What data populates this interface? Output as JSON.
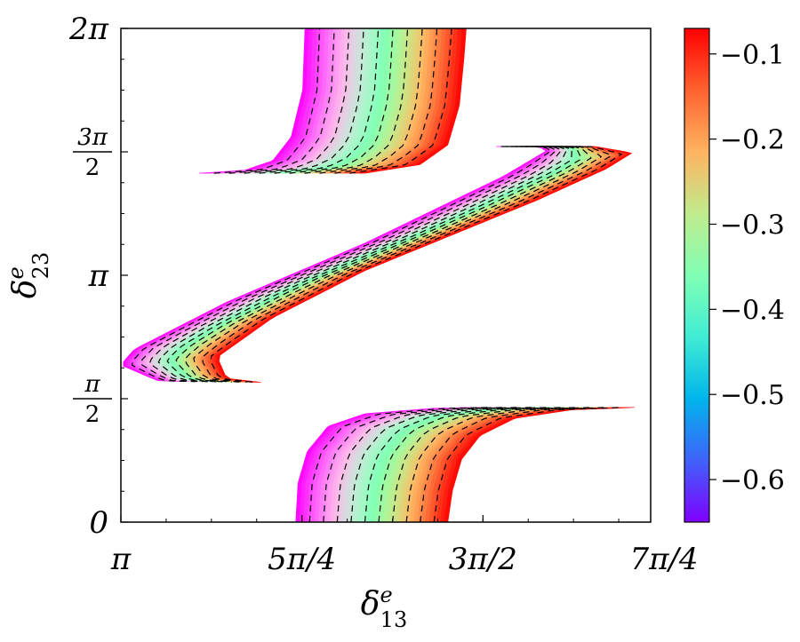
{
  "chart_data": {
    "type": "heatmap",
    "xlabel": "δ",
    "xlabel_super": "e",
    "xlabel_sub": "13",
    "ylabel": "δ",
    "ylabel_super": "e",
    "ylabel_sub": "23",
    "xlim": [
      3.14159,
      5.44
    ],
    "ylim": [
      0,
      6.28319
    ],
    "x_ticks": [
      {
        "value": 3.14159,
        "label": "π"
      },
      {
        "value": 3.92699,
        "label": "5π/4"
      },
      {
        "value": 4.71239,
        "label": "3π/2"
      },
      {
        "value": 5.49779,
        "label": "7π/4"
      }
    ],
    "y_ticks": [
      {
        "value": 0,
        "label": "0"
      },
      {
        "value": 1.5708,
        "num": "π",
        "den": "2"
      },
      {
        "value": 3.14159,
        "label": "π"
      },
      {
        "value": 4.71239,
        "num": "3π",
        "den": "2"
      },
      {
        "value": 6.28319,
        "label": "2π"
      }
    ],
    "colorbar": {
      "colormap": "rainbow",
      "range": [
        -0.65,
        -0.07
      ],
      "ticks": [
        {
          "value": -0.1,
          "label": "−0.1"
        },
        {
          "value": -0.2,
          "label": "−0.2"
        },
        {
          "value": -0.3,
          "label": "−0.3"
        },
        {
          "value": -0.4,
          "label": "−0.4"
        },
        {
          "value": -0.5,
          "label": "−0.5"
        },
        {
          "value": -0.6,
          "label": "−0.6"
        }
      ]
    },
    "contour_style": "dashed black",
    "contour_count": 10,
    "regions": [
      {
        "name": "upper branch",
        "violet_edge": [
          [
            3.48,
            4.44
          ],
          [
            3.68,
            4.48
          ],
          [
            3.8,
            4.6
          ],
          [
            3.88,
            4.9
          ],
          [
            3.93,
            5.5
          ],
          [
            3.94,
            6.28
          ]
        ],
        "red_edge": [
          [
            4.2,
            4.44
          ],
          [
            4.44,
            4.55
          ],
          [
            4.56,
            4.8
          ],
          [
            4.61,
            5.3
          ],
          [
            4.63,
            5.9
          ],
          [
            4.64,
            6.28
          ]
        ]
      },
      {
        "name": "middle branch",
        "violet_edge": [
          [
            4.77,
            4.78
          ],
          [
            4.95,
            4.78
          ],
          [
            4.99,
            4.73
          ],
          [
            4.8,
            4.4
          ],
          [
            4.2,
            3.55
          ],
          [
            3.6,
            2.8
          ],
          [
            3.2,
            2.2
          ],
          [
            3.14,
            2.0
          ],
          [
            3.3,
            1.8
          ],
          [
            3.4,
            1.79
          ]
        ],
        "red_edge": [
          [
            5.0,
            4.78
          ],
          [
            5.2,
            4.78
          ],
          [
            5.36,
            4.7
          ],
          [
            5.25,
            4.5
          ],
          [
            4.95,
            4.1
          ],
          [
            4.2,
            3.2
          ],
          [
            3.8,
            2.6
          ],
          [
            3.56,
            2.1
          ],
          [
            3.6,
            1.83
          ],
          [
            3.75,
            1.78
          ]
        ]
      },
      {
        "name": "lower branch",
        "violet_edge": [
          [
            3.9,
            0.0
          ],
          [
            3.91,
            0.5
          ],
          [
            3.95,
            0.9
          ],
          [
            4.04,
            1.22
          ],
          [
            4.2,
            1.38
          ],
          [
            4.5,
            1.45
          ],
          [
            4.68,
            1.46
          ]
        ],
        "red_edge": [
          [
            4.56,
            0.0
          ],
          [
            4.58,
            0.4
          ],
          [
            4.62,
            0.8
          ],
          [
            4.7,
            1.1
          ],
          [
            4.85,
            1.32
          ],
          [
            5.1,
            1.43
          ],
          [
            5.3,
            1.45
          ],
          [
            5.37,
            1.46
          ]
        ]
      }
    ]
  }
}
